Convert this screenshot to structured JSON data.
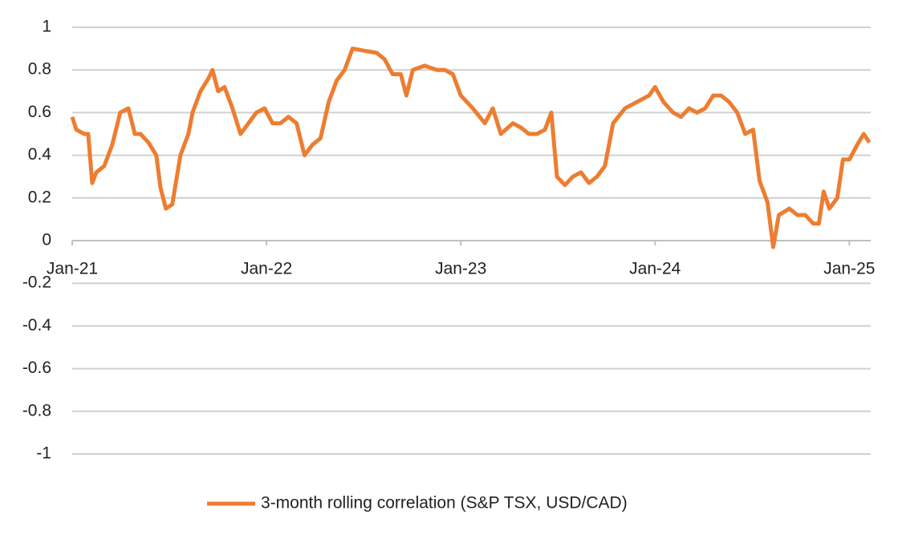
{
  "chart_data": {
    "type": "line",
    "x": [
      2021.0,
      2021.021,
      2021.062,
      2021.082,
      2021.103,
      2021.124,
      2021.165,
      2021.206,
      2021.247,
      2021.289,
      2021.322,
      2021.351,
      2021.392,
      2021.433,
      2021.454,
      2021.482,
      2021.515,
      2021.557,
      2021.598,
      2021.619,
      2021.66,
      2021.701,
      2021.722,
      2021.751,
      2021.784,
      2021.825,
      2021.866,
      2021.907,
      2021.948,
      2021.99,
      2022.031,
      2022.072,
      2022.113,
      2022.155,
      2022.196,
      2022.237,
      2022.278,
      2022.32,
      2022.361,
      2022.402,
      2022.443,
      2022.505,
      2022.567,
      2022.608,
      2022.649,
      2022.691,
      2022.72,
      2022.753,
      2022.814,
      2022.876,
      2022.918,
      2022.959,
      2023.0,
      2023.062,
      2023.124,
      2023.165,
      2023.206,
      2023.268,
      2023.309,
      2023.351,
      2023.392,
      2023.433,
      2023.466,
      2023.495,
      2023.536,
      2023.577,
      2023.619,
      2023.66,
      2023.701,
      2023.742,
      2023.784,
      2023.845,
      2023.907,
      2023.969,
      2024.0,
      2024.043,
      2024.093,
      2024.134,
      2024.175,
      2024.216,
      2024.258,
      2024.299,
      2024.34,
      2024.381,
      2024.423,
      2024.464,
      2024.505,
      2024.538,
      2024.579,
      2024.608,
      2024.637,
      2024.691,
      2024.732,
      2024.773,
      2024.814,
      2024.843,
      2024.868,
      2024.897,
      2024.938,
      2024.967,
      2025.0,
      2025.041,
      2025.074,
      2025.103
    ],
    "series": [
      {
        "name": "3-month rolling correlation (S&P TSX, USD/CAD)",
        "color": "#ed7d31",
        "values": [
          0.58,
          0.52,
          0.5,
          0.5,
          0.27,
          0.32,
          0.35,
          0.45,
          0.6,
          0.62,
          0.5,
          0.5,
          0.46,
          0.4,
          0.25,
          0.15,
          0.17,
          0.4,
          0.5,
          0.6,
          0.7,
          0.76,
          0.8,
          0.7,
          0.72,
          0.62,
          0.5,
          0.55,
          0.6,
          0.62,
          0.55,
          0.55,
          0.58,
          0.55,
          0.4,
          0.45,
          0.48,
          0.65,
          0.75,
          0.8,
          0.9,
          0.89,
          0.88,
          0.85,
          0.78,
          0.78,
          0.68,
          0.8,
          0.82,
          0.8,
          0.8,
          0.78,
          0.68,
          0.62,
          0.55,
          0.62,
          0.5,
          0.55,
          0.53,
          0.5,
          0.5,
          0.52,
          0.6,
          0.3,
          0.26,
          0.3,
          0.32,
          0.27,
          0.3,
          0.35,
          0.55,
          0.62,
          0.65,
          0.68,
          0.72,
          0.65,
          0.6,
          0.58,
          0.62,
          0.6,
          0.62,
          0.68,
          0.68,
          0.65,
          0.6,
          0.5,
          0.52,
          0.28,
          0.18,
          -0.03,
          0.12,
          0.15,
          0.12,
          0.12,
          0.08,
          0.08,
          0.23,
          0.15,
          0.2,
          0.38,
          0.38,
          0.45,
          0.5,
          0.46
        ]
      }
    ],
    "xlim": [
      2021,
      2025.11
    ],
    "xticks": [
      {
        "value": 2021,
        "label": "Jan-21"
      },
      {
        "value": 2022,
        "label": "Jan-22"
      },
      {
        "value": 2023,
        "label": "Jan-23"
      },
      {
        "value": 2024,
        "label": "Jan-24"
      },
      {
        "value": 2025,
        "label": "Jan-25"
      }
    ],
    "ylim": [
      -1,
      1
    ],
    "yticks": [
      1,
      0.8,
      0.6,
      0.4,
      0.2,
      0,
      -0.2,
      -0.4,
      -0.6,
      -0.8,
      -1
    ],
    "grid": true,
    "legend": "bottom"
  }
}
